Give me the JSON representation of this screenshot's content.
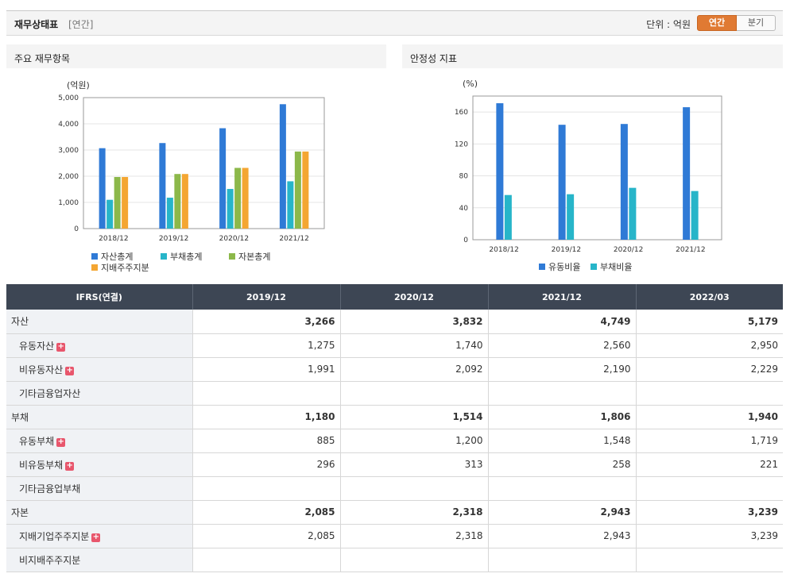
{
  "header": {
    "title": "재무상태표",
    "period_tag": "[연간]",
    "unit_label": "단위 : 억원",
    "toggle_annual": "연간",
    "toggle_quarter": "분기"
  },
  "panels": {
    "left_title": "주요 재무항목",
    "right_title": "안정성 지표"
  },
  "chart_data": [
    {
      "type": "bar",
      "title": "주요 재무항목",
      "unit": "(억원)",
      "categories": [
        "2018/12",
        "2019/12",
        "2020/12",
        "2021/12"
      ],
      "ylim": [
        0,
        5000
      ],
      "yticks": [
        "0",
        "1,000",
        "2,000",
        "3,000",
        "4,000",
        "5,000"
      ],
      "series": [
        {
          "name": "자산총계",
          "color": "#2f7ad6",
          "values": [
            3070,
            3266,
            3832,
            4749
          ]
        },
        {
          "name": "부채총계",
          "color": "#27b5c9",
          "values": [
            1100,
            1180,
            1514,
            1806
          ]
        },
        {
          "name": "자본총계",
          "color": "#8cb84a",
          "values": [
            1970,
            2085,
            2318,
            2943
          ]
        },
        {
          "name": "지배주주지분",
          "color": "#f4a632",
          "values": [
            1970,
            2085,
            2318,
            2943
          ]
        }
      ]
    },
    {
      "type": "bar",
      "title": "안정성 지표",
      "unit": "(%)",
      "categories": [
        "2018/12",
        "2019/12",
        "2020/12",
        "2021/12"
      ],
      "ylim": [
        0,
        180
      ],
      "yticks": [
        "0",
        "40",
        "80",
        "120",
        "160"
      ],
      "series": [
        {
          "name": "유동비율",
          "color": "#2f7ad6",
          "values": [
            171,
            144,
            145,
            166
          ]
        },
        {
          "name": "부채비율",
          "color": "#27b5c9",
          "values": [
            56,
            57,
            65,
            61
          ]
        }
      ]
    }
  ],
  "table": {
    "corner": "IFRS(연결)",
    "columns": [
      "2019/12",
      "2020/12",
      "2021/12",
      "2022/03"
    ],
    "rows": [
      {
        "label": "자산",
        "level": 0,
        "expand": false,
        "values": [
          "3,266",
          "3,832",
          "4,749",
          "5,179"
        ]
      },
      {
        "label": "유동자산",
        "level": 1,
        "expand": true,
        "values": [
          "1,275",
          "1,740",
          "2,560",
          "2,950"
        ]
      },
      {
        "label": "비유동자산",
        "level": 1,
        "expand": true,
        "values": [
          "1,991",
          "2,092",
          "2,190",
          "2,229"
        ]
      },
      {
        "label": "기타금융업자산",
        "level": 1,
        "expand": false,
        "values": [
          "",
          "",
          "",
          ""
        ]
      },
      {
        "label": "부채",
        "level": 0,
        "expand": false,
        "values": [
          "1,180",
          "1,514",
          "1,806",
          "1,940"
        ]
      },
      {
        "label": "유동부채",
        "level": 1,
        "expand": true,
        "values": [
          "885",
          "1,200",
          "1,548",
          "1,719"
        ]
      },
      {
        "label": "비유동부채",
        "level": 1,
        "expand": true,
        "values": [
          "296",
          "313",
          "258",
          "221"
        ]
      },
      {
        "label": "기타금융업부채",
        "level": 1,
        "expand": false,
        "values": [
          "",
          "",
          "",
          ""
        ]
      },
      {
        "label": "자본",
        "level": 0,
        "expand": false,
        "values": [
          "2,085",
          "2,318",
          "2,943",
          "3,239"
        ]
      },
      {
        "label": "지배기업주주지분",
        "level": 1,
        "expand": true,
        "values": [
          "2,085",
          "2,318",
          "2,943",
          "3,239"
        ]
      },
      {
        "label": "비지배주주지분",
        "level": 1,
        "expand": false,
        "values": [
          "",
          "",
          "",
          ""
        ]
      }
    ]
  }
}
